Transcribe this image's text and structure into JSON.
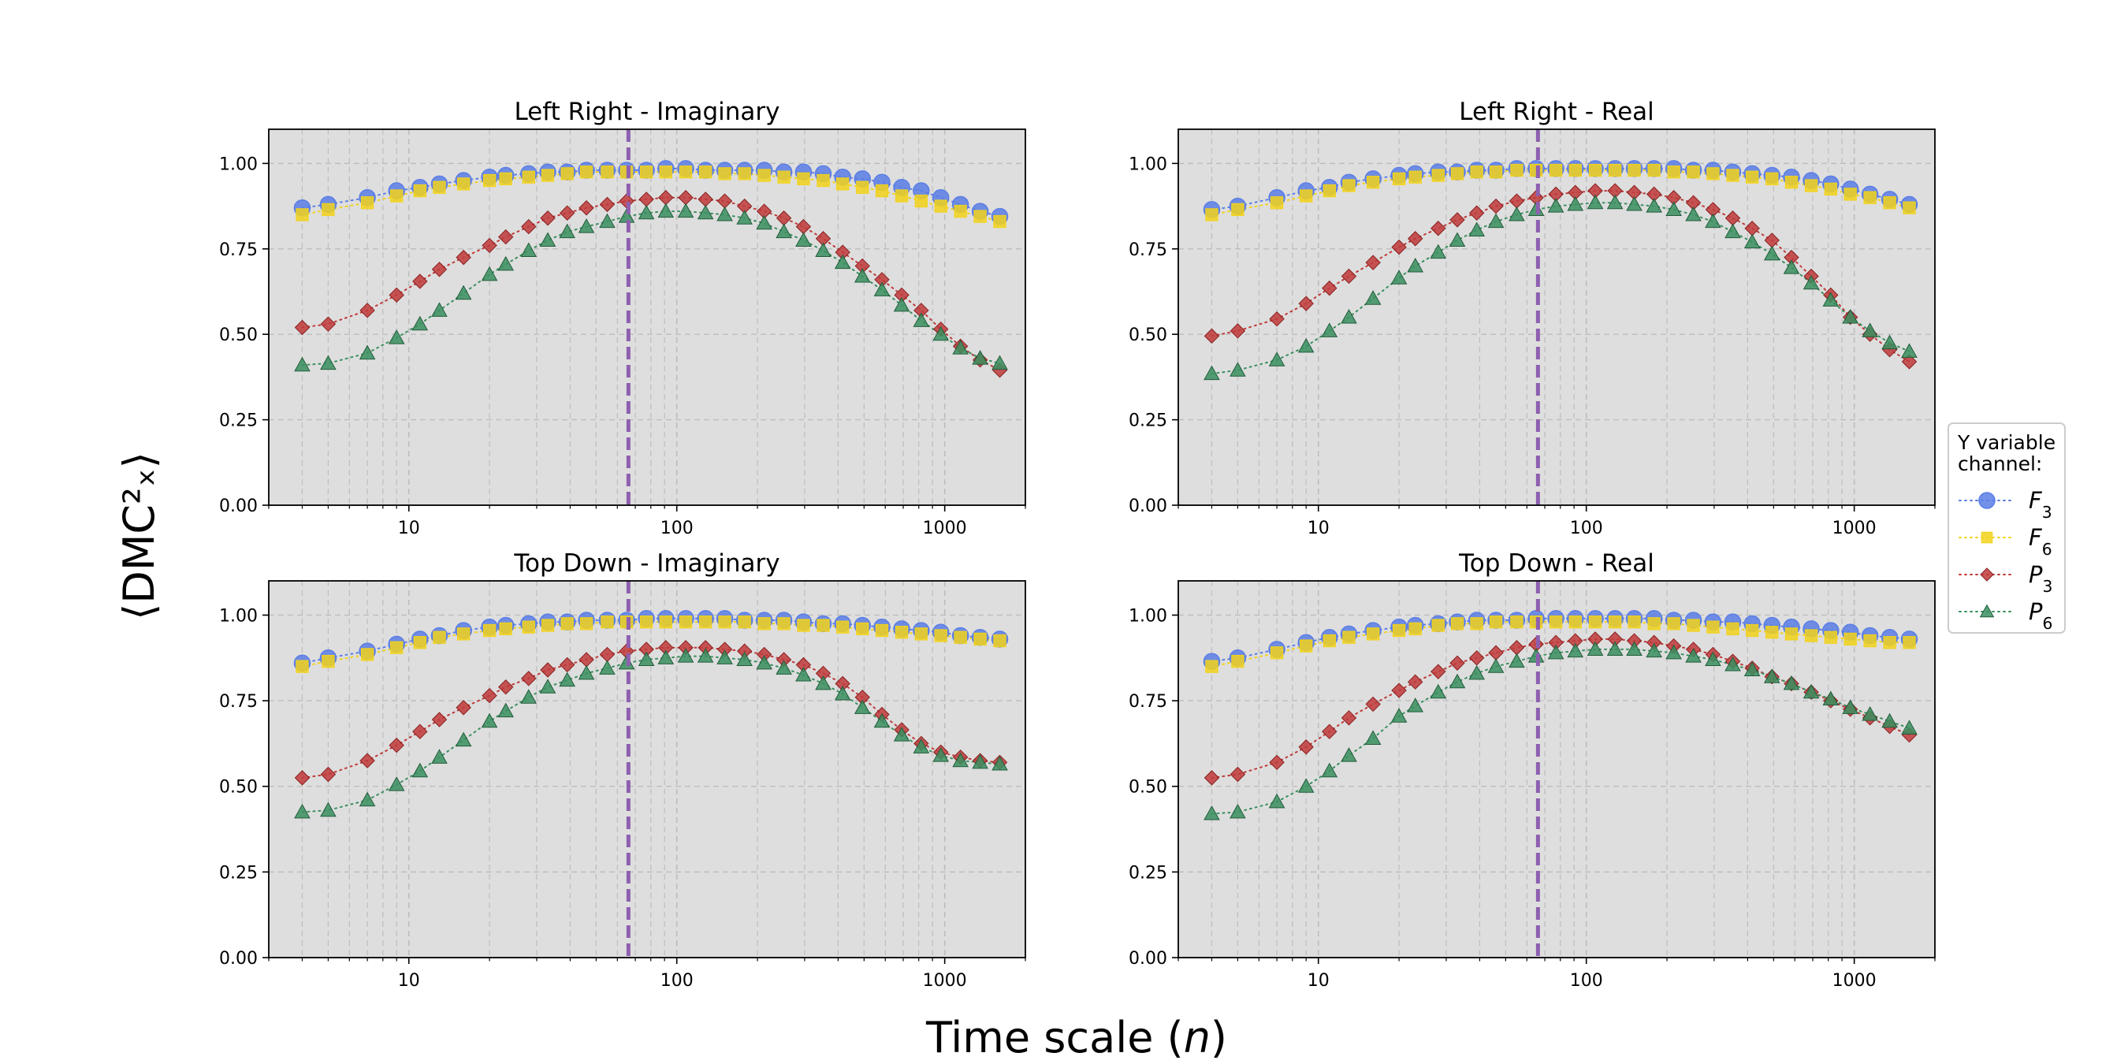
{
  "figure": {
    "xlabel": "Time scale (n)",
    "ylabel": "⟨DMC²ₓ⟩",
    "legend": {
      "title_line1": "Y variable",
      "title_line2": "channel:",
      "entries": [
        {
          "key": "F3",
          "base": "F",
          "sub": "3"
        },
        {
          "key": "F6",
          "base": "F",
          "sub": "6"
        },
        {
          "key": "P3",
          "base": "P",
          "sub": "3"
        },
        {
          "key": "P6",
          "base": "P",
          "sub": "6"
        }
      ]
    }
  },
  "colors": {
    "F3": "#5b7ee5",
    "F6": "#f2d21b",
    "P3": "#c03a3a",
    "P6": "#3a8f5f",
    "vline": "#8e5fb0",
    "axes_bg": "#dedede"
  },
  "chart_data": [
    {
      "type": "scatter",
      "title": "Left Right - Imaginary",
      "xscale": "log",
      "xlim": [
        3,
        2000
      ],
      "ylim": [
        0,
        1.1
      ],
      "yticks": [
        "0.00",
        "0.25",
        "0.50",
        "0.75",
        "1.00"
      ],
      "xticks": [
        "10",
        "100",
        "1000"
      ],
      "vline_x": 66,
      "grid": true,
      "x": [
        4,
        5,
        7,
        9,
        11,
        13,
        16,
        20,
        23,
        28,
        33,
        39,
        46,
        55,
        65,
        77,
        91,
        108,
        128,
        151,
        179,
        212,
        251,
        297,
        352,
        416,
        493,
        583,
        691,
        817,
        967,
        1145,
        1356,
        1605
      ],
      "series": [
        {
          "name": "F3",
          "marker": "circle",
          "values": [
            0.87,
            0.88,
            0.9,
            0.92,
            0.93,
            0.94,
            0.95,
            0.96,
            0.965,
            0.97,
            0.975,
            0.975,
            0.98,
            0.98,
            0.98,
            0.98,
            0.985,
            0.985,
            0.98,
            0.98,
            0.98,
            0.98,
            0.975,
            0.975,
            0.97,
            0.96,
            0.955,
            0.945,
            0.93,
            0.92,
            0.9,
            0.88,
            0.86,
            0.845
          ]
        },
        {
          "name": "F6",
          "marker": "square",
          "values": [
            0.85,
            0.865,
            0.885,
            0.905,
            0.92,
            0.93,
            0.94,
            0.95,
            0.955,
            0.96,
            0.965,
            0.97,
            0.975,
            0.975,
            0.975,
            0.975,
            0.975,
            0.975,
            0.975,
            0.97,
            0.97,
            0.965,
            0.96,
            0.955,
            0.95,
            0.94,
            0.93,
            0.92,
            0.905,
            0.89,
            0.875,
            0.86,
            0.845,
            0.83
          ]
        },
        {
          "name": "P3",
          "marker": "diamond",
          "values": [
            0.52,
            0.53,
            0.57,
            0.615,
            0.655,
            0.69,
            0.725,
            0.76,
            0.785,
            0.815,
            0.84,
            0.855,
            0.87,
            0.88,
            0.89,
            0.895,
            0.9,
            0.9,
            0.895,
            0.89,
            0.875,
            0.86,
            0.84,
            0.815,
            0.78,
            0.74,
            0.7,
            0.66,
            0.615,
            0.57,
            0.515,
            0.465,
            0.425,
            0.395
          ]
        },
        {
          "name": "P6",
          "marker": "triangle",
          "values": [
            0.41,
            0.415,
            0.445,
            0.49,
            0.53,
            0.57,
            0.62,
            0.675,
            0.705,
            0.745,
            0.775,
            0.8,
            0.815,
            0.83,
            0.845,
            0.855,
            0.86,
            0.86,
            0.855,
            0.85,
            0.84,
            0.825,
            0.8,
            0.775,
            0.745,
            0.71,
            0.67,
            0.63,
            0.585,
            0.54,
            0.5,
            0.46,
            0.43,
            0.415
          ]
        }
      ]
    },
    {
      "type": "scatter",
      "title": "Left Right - Real",
      "xscale": "log",
      "xlim": [
        3,
        2000
      ],
      "ylim": [
        0,
        1.1
      ],
      "yticks": [
        "0.00",
        "0.25",
        "0.50",
        "0.75",
        "1.00"
      ],
      "xticks": [
        "10",
        "100",
        "1000"
      ],
      "vline_x": 66,
      "grid": true,
      "x": [
        4,
        5,
        7,
        9,
        11,
        13,
        16,
        20,
        23,
        28,
        33,
        39,
        46,
        55,
        65,
        77,
        91,
        108,
        128,
        151,
        179,
        212,
        251,
        297,
        352,
        416,
        493,
        583,
        691,
        817,
        967,
        1145,
        1356,
        1605
      ],
      "series": [
        {
          "name": "F3",
          "marker": "circle",
          "values": [
            0.865,
            0.875,
            0.9,
            0.92,
            0.93,
            0.945,
            0.955,
            0.965,
            0.97,
            0.975,
            0.975,
            0.98,
            0.98,
            0.985,
            0.985,
            0.985,
            0.985,
            0.985,
            0.985,
            0.985,
            0.985,
            0.985,
            0.98,
            0.98,
            0.975,
            0.97,
            0.965,
            0.96,
            0.95,
            0.94,
            0.925,
            0.91,
            0.895,
            0.88
          ]
        },
        {
          "name": "F6",
          "marker": "square",
          "values": [
            0.85,
            0.865,
            0.885,
            0.905,
            0.92,
            0.935,
            0.945,
            0.955,
            0.96,
            0.965,
            0.97,
            0.975,
            0.975,
            0.98,
            0.98,
            0.98,
            0.98,
            0.98,
            0.98,
            0.98,
            0.98,
            0.975,
            0.975,
            0.97,
            0.965,
            0.96,
            0.955,
            0.945,
            0.935,
            0.925,
            0.91,
            0.9,
            0.885,
            0.87
          ]
        },
        {
          "name": "P3",
          "marker": "diamond",
          "values": [
            0.495,
            0.51,
            0.545,
            0.59,
            0.635,
            0.67,
            0.71,
            0.755,
            0.78,
            0.81,
            0.835,
            0.855,
            0.875,
            0.89,
            0.9,
            0.91,
            0.915,
            0.92,
            0.92,
            0.915,
            0.91,
            0.9,
            0.885,
            0.865,
            0.84,
            0.81,
            0.775,
            0.725,
            0.67,
            0.615,
            0.55,
            0.5,
            0.455,
            0.42
          ]
        },
        {
          "name": "P6",
          "marker": "triangle",
          "values": [
            0.385,
            0.395,
            0.425,
            0.465,
            0.51,
            0.55,
            0.605,
            0.665,
            0.7,
            0.74,
            0.775,
            0.805,
            0.83,
            0.85,
            0.865,
            0.875,
            0.88,
            0.885,
            0.885,
            0.88,
            0.875,
            0.865,
            0.85,
            0.83,
            0.8,
            0.77,
            0.735,
            0.695,
            0.65,
            0.6,
            0.55,
            0.51,
            0.475,
            0.45
          ]
        }
      ]
    },
    {
      "type": "scatter",
      "title": "Top Down - Imaginary",
      "xscale": "log",
      "xlim": [
        3,
        2000
      ],
      "ylim": [
        0,
        1.1
      ],
      "yticks": [
        "0.00",
        "0.25",
        "0.50",
        "0.75",
        "1.00"
      ],
      "xticks": [
        "10",
        "100",
        "1000"
      ],
      "vline_x": 66,
      "grid": true,
      "x": [
        4,
        5,
        7,
        9,
        11,
        13,
        16,
        20,
        23,
        28,
        33,
        39,
        46,
        55,
        65,
        77,
        91,
        108,
        128,
        151,
        179,
        212,
        251,
        297,
        352,
        416,
        493,
        583,
        691,
        817,
        967,
        1145,
        1356,
        1605
      ],
      "series": [
        {
          "name": "F3",
          "marker": "circle",
          "values": [
            0.86,
            0.875,
            0.895,
            0.915,
            0.93,
            0.94,
            0.955,
            0.965,
            0.97,
            0.975,
            0.98,
            0.98,
            0.985,
            0.985,
            0.985,
            0.99,
            0.99,
            0.99,
            0.99,
            0.99,
            0.985,
            0.985,
            0.985,
            0.98,
            0.975,
            0.975,
            0.97,
            0.965,
            0.96,
            0.955,
            0.95,
            0.94,
            0.935,
            0.93
          ]
        },
        {
          "name": "F6",
          "marker": "square",
          "values": [
            0.85,
            0.865,
            0.885,
            0.905,
            0.92,
            0.935,
            0.945,
            0.955,
            0.96,
            0.965,
            0.97,
            0.975,
            0.975,
            0.98,
            0.98,
            0.98,
            0.98,
            0.98,
            0.98,
            0.98,
            0.98,
            0.975,
            0.975,
            0.97,
            0.97,
            0.965,
            0.96,
            0.955,
            0.95,
            0.945,
            0.94,
            0.935,
            0.93,
            0.925
          ]
        },
        {
          "name": "P3",
          "marker": "diamond",
          "values": [
            0.525,
            0.535,
            0.575,
            0.62,
            0.66,
            0.695,
            0.73,
            0.765,
            0.79,
            0.815,
            0.84,
            0.855,
            0.87,
            0.885,
            0.895,
            0.9,
            0.905,
            0.905,
            0.905,
            0.9,
            0.895,
            0.885,
            0.87,
            0.855,
            0.83,
            0.8,
            0.76,
            0.71,
            0.665,
            0.625,
            0.6,
            0.585,
            0.575,
            0.57
          ]
        },
        {
          "name": "P6",
          "marker": "triangle",
          "values": [
            0.425,
            0.43,
            0.46,
            0.505,
            0.545,
            0.585,
            0.635,
            0.69,
            0.72,
            0.76,
            0.79,
            0.81,
            0.83,
            0.845,
            0.86,
            0.87,
            0.875,
            0.88,
            0.88,
            0.875,
            0.87,
            0.86,
            0.845,
            0.825,
            0.8,
            0.77,
            0.73,
            0.69,
            0.65,
            0.615,
            0.59,
            0.575,
            0.57,
            0.565
          ]
        }
      ]
    },
    {
      "type": "scatter",
      "title": "Top Down - Real",
      "xscale": "log",
      "xlim": [
        3,
        2000
      ],
      "ylim": [
        0,
        1.1
      ],
      "yticks": [
        "0.00",
        "0.25",
        "0.50",
        "0.75",
        "1.00"
      ],
      "xticks": [
        "10",
        "100",
        "1000"
      ],
      "vline_x": 66,
      "grid": true,
      "x": [
        4,
        5,
        7,
        9,
        11,
        13,
        16,
        20,
        23,
        28,
        33,
        39,
        46,
        55,
        65,
        77,
        91,
        108,
        128,
        151,
        179,
        212,
        251,
        297,
        352,
        416,
        493,
        583,
        691,
        817,
        967,
        1145,
        1356,
        1605
      ],
      "series": [
        {
          "name": "F3",
          "marker": "circle",
          "values": [
            0.865,
            0.875,
            0.9,
            0.92,
            0.935,
            0.945,
            0.955,
            0.965,
            0.97,
            0.975,
            0.98,
            0.985,
            0.985,
            0.985,
            0.99,
            0.99,
            0.99,
            0.99,
            0.99,
            0.99,
            0.99,
            0.985,
            0.985,
            0.98,
            0.98,
            0.975,
            0.97,
            0.965,
            0.96,
            0.955,
            0.95,
            0.94,
            0.935,
            0.93
          ]
        },
        {
          "name": "F6",
          "marker": "square",
          "values": [
            0.85,
            0.865,
            0.89,
            0.91,
            0.925,
            0.935,
            0.945,
            0.955,
            0.96,
            0.97,
            0.975,
            0.975,
            0.98,
            0.98,
            0.98,
            0.98,
            0.98,
            0.98,
            0.98,
            0.98,
            0.975,
            0.975,
            0.97,
            0.965,
            0.96,
            0.955,
            0.95,
            0.945,
            0.94,
            0.935,
            0.93,
            0.925,
            0.92,
            0.92
          ]
        },
        {
          "name": "P3",
          "marker": "diamond",
          "values": [
            0.525,
            0.535,
            0.57,
            0.615,
            0.66,
            0.7,
            0.74,
            0.78,
            0.805,
            0.835,
            0.86,
            0.875,
            0.89,
            0.905,
            0.915,
            0.92,
            0.925,
            0.93,
            0.93,
            0.925,
            0.92,
            0.91,
            0.9,
            0.885,
            0.865,
            0.845,
            0.82,
            0.8,
            0.775,
            0.75,
            0.725,
            0.7,
            0.675,
            0.65
          ]
        },
        {
          "name": "P6",
          "marker": "triangle",
          "values": [
            0.42,
            0.425,
            0.455,
            0.5,
            0.545,
            0.59,
            0.64,
            0.705,
            0.735,
            0.775,
            0.805,
            0.83,
            0.85,
            0.865,
            0.88,
            0.89,
            0.895,
            0.9,
            0.9,
            0.9,
            0.895,
            0.89,
            0.88,
            0.87,
            0.855,
            0.84,
            0.82,
            0.8,
            0.775,
            0.755,
            0.73,
            0.71,
            0.69,
            0.67
          ]
        }
      ]
    }
  ]
}
